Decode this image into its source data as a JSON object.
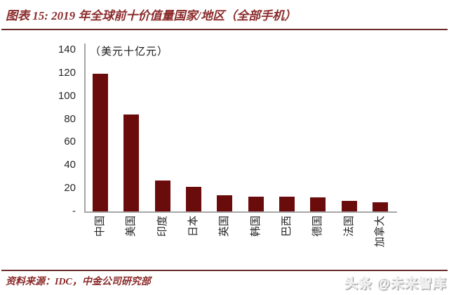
{
  "title": "图表 15: 2019 年全球前十价值量国家/地区（全部手机）",
  "chart_data": {
    "type": "bar",
    "title": "2019 年全球前十价值量国家/地区（全部手机）",
    "unit_label": "（美元十亿元）",
    "categories": [
      "中国",
      "美国",
      "印度",
      "日本",
      "英国",
      "韩国",
      "巴西",
      "德国",
      "法国",
      "加拿大"
    ],
    "values": [
      119,
      84,
      27,
      21,
      14,
      13,
      13,
      12,
      9,
      8
    ],
    "xlabel": "",
    "ylabel": "美元十亿元",
    "ylim": [
      0,
      140
    ],
    "y_ticks": [
      140,
      120,
      100,
      80,
      60,
      40,
      20
    ],
    "zero_tick_label": "-",
    "grid": false,
    "legend": false,
    "bar_color": "#6B0C0C",
    "axis_color": "#A6A6A6"
  },
  "footer": {
    "source": "资料来源：IDC，中金公司研究部"
  },
  "watermark": "头条 @未来智库",
  "colors": {
    "accent_text": "#8B2B2B",
    "rule": "#6B2A2A",
    "bar": "#6B0C0C",
    "axis": "#A6A6A6"
  }
}
